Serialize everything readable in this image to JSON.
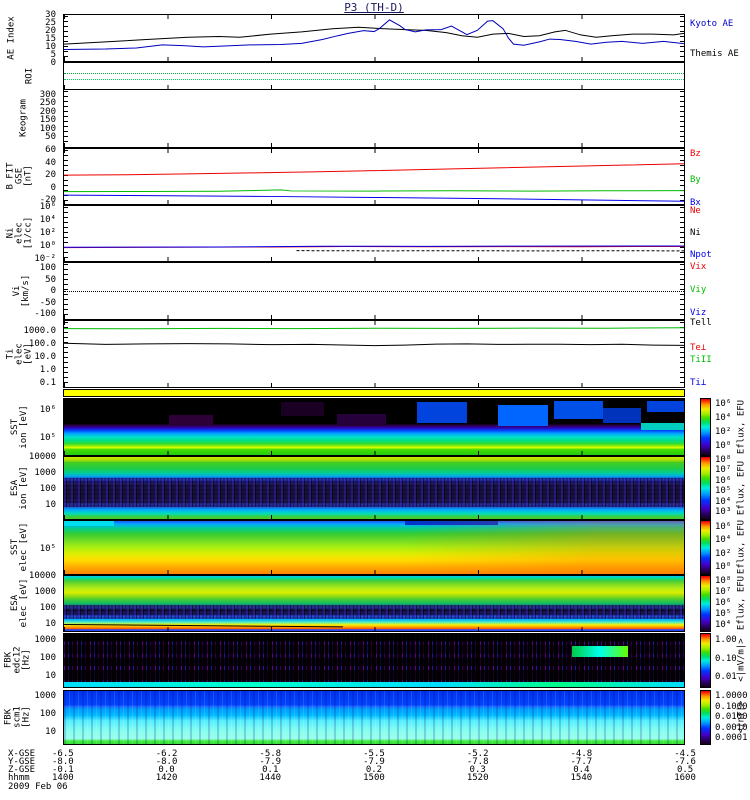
{
  "chart_data": {
    "type": "multi-panel-timeseries",
    "title": "P3 (TH-D)",
    "x": {
      "label": "hhmm",
      "ticks": [
        "1400",
        "1420",
        "1440",
        "1500",
        "1520",
        "1540",
        "1600"
      ],
      "date": "2009 Feb 06",
      "range_minutes": [
        0,
        120
      ],
      "ephemeris": [
        {
          "label": "X-GSE",
          "values": [
            "-6.5",
            "-6.2",
            "-5.8",
            "-5.5",
            "-5.2",
            "-4.8",
            "-4.5"
          ]
        },
        {
          "label": "Y-GSE",
          "values": [
            "-8.0",
            "-8.0",
            "-7.9",
            "-7.9",
            "-7.8",
            "-7.7",
            "-7.6"
          ]
        },
        {
          "label": "Z-GSE",
          "values": [
            "-0.1",
            "0.0",
            "0.1",
            "0.2",
            "0.3",
            "0.4",
            "0.5"
          ]
        }
      ]
    },
    "panels": [
      {
        "id": "ae-index",
        "left_label_lines": [
          "AE Index"
        ],
        "yticks": [
          "30",
          "25",
          "20",
          "15",
          "10",
          "5",
          "0"
        ],
        "yrange": [
          0,
          30
        ],
        "scale": "linear",
        "xrange": [
          0,
          120
        ],
        "right_labels": [
          {
            "text": "Kyoto AE",
            "color": "#0000cc"
          },
          {
            "text": "Themis AE",
            "color": "#000000"
          }
        ],
        "series": [
          {
            "name": "kyoto-ae-line",
            "color": "#000000",
            "points": [
              [
                0,
                11
              ],
              [
                8,
                12.5
              ],
              [
                16,
                14
              ],
              [
                24,
                15.5
              ],
              [
                30,
                16
              ],
              [
                34,
                15.5
              ],
              [
                40,
                17.5
              ],
              [
                46,
                19
              ],
              [
                52,
                21
              ],
              [
                57,
                22
              ],
              [
                62,
                21
              ],
              [
                66,
                20.5
              ],
              [
                70,
                20
              ],
              [
                74,
                18.5
              ],
              [
                77,
                16.5
              ],
              [
                80,
                15.5
              ],
              [
                83,
                17.5
              ],
              [
                86,
                18
              ],
              [
                89,
                16
              ],
              [
                92,
                16.5
              ],
              [
                95,
                19
              ],
              [
                97,
                20
              ],
              [
                100,
                17
              ],
              [
                103,
                15.5
              ],
              [
                106,
                16.5
              ],
              [
                110,
                17.5
              ],
              [
                114,
                17.5
              ],
              [
                118,
                17
              ],
              [
                120,
                18
              ]
            ]
          },
          {
            "name": "themis-ae-line",
            "color": "#0000bb",
            "points": [
              [
                0,
                7.5
              ],
              [
                8,
                7.8
              ],
              [
                14,
                8.5
              ],
              [
                19,
                10.5
              ],
              [
                23,
                10
              ],
              [
                27,
                9.2
              ],
              [
                31,
                9.8
              ],
              [
                36,
                10.5
              ],
              [
                42,
                10.8
              ],
              [
                46,
                11.5
              ],
              [
                50,
                14
              ],
              [
                53,
                16.5
              ],
              [
                55,
                18
              ],
              [
                58,
                19.8
              ],
              [
                60,
                19.2
              ],
              [
                61,
                21
              ],
              [
                63,
                26.8
              ],
              [
                65,
                23
              ],
              [
                66,
                20.5
              ],
              [
                68,
                19
              ],
              [
                70,
                20.3
              ],
              [
                73,
                20.5
              ],
              [
                75,
                22.8
              ],
              [
                77,
                19
              ],
              [
                78,
                17.2
              ],
              [
                80,
                20
              ],
              [
                82,
                26
              ],
              [
                83,
                26.3
              ],
              [
                85,
                21
              ],
              [
                86,
                15
              ],
              [
                87,
                11
              ],
              [
                89,
                10.3
              ],
              [
                92,
                12.5
              ],
              [
                94,
                14.3
              ],
              [
                96,
                14
              ],
              [
                99,
                12.8
              ],
              [
                102,
                11
              ],
              [
                105,
                12.2
              ],
              [
                108,
                12.8
              ],
              [
                112,
                11.5
              ],
              [
                116,
                12.8
              ],
              [
                120,
                11.3
              ]
            ]
          }
        ]
      },
      {
        "id": "roi",
        "left_label_lines": [
          "ROI"
        ],
        "yticks": []
      },
      {
        "id": "keogram",
        "left_label_lines": [
          "Keogram"
        ],
        "yticks": [
          "300",
          "250",
          "200",
          "150",
          "100",
          "50"
        ]
      },
      {
        "id": "b-fit",
        "left_label_lines": [
          "B FIT",
          "GSE",
          "[nT]"
        ],
        "yticks": [
          "60",
          "40",
          "20",
          "0",
          "-20"
        ],
        "yrange": [
          -20,
          60
        ],
        "scale": "linear",
        "xrange": [
          0,
          120
        ],
        "right_labels": [
          {
            "text": "Bz",
            "color": "#ee0000"
          },
          {
            "text": "By",
            "color": "#00bb00"
          },
          {
            "text": "Bx",
            "color": "#0000ee"
          }
        ],
        "series": [
          {
            "name": "bz-line",
            "color": "#ee0000",
            "points": [
              [
                0,
                22
              ],
              [
                12,
                22.5
              ],
              [
                24,
                23.8
              ],
              [
                36,
                25.2
              ],
              [
                48,
                26.8
              ],
              [
                60,
                28.5
              ],
              [
                72,
                30.5
              ],
              [
                84,
                32.5
              ],
              [
                96,
                34.5
              ],
              [
                108,
                36.5
              ],
              [
                120,
                38.5
              ]
            ]
          },
          {
            "name": "by-line",
            "color": "#00bb00",
            "points": [
              [
                0,
                -2
              ],
              [
                15,
                -1.8
              ],
              [
                30,
                -1.5
              ],
              [
                42,
                0.5
              ],
              [
                44,
                -1
              ],
              [
                60,
                -1.2
              ],
              [
                75,
                -0.8
              ],
              [
                90,
                -1.2
              ],
              [
                105,
                -0.8
              ],
              [
                120,
                -0.5
              ]
            ]
          },
          {
            "name": "bx-line",
            "color": "#0000ee",
            "points": [
              [
                0,
                -7
              ],
              [
                20,
                -8
              ],
              [
                40,
                -9
              ],
              [
                60,
                -10.5
              ],
              [
                80,
                -12
              ],
              [
                100,
                -14
              ],
              [
                120,
                -16
              ]
            ]
          }
        ]
      },
      {
        "id": "density",
        "left_label_lines": [
          "Ni",
          "elec",
          "[1/cc]"
        ],
        "yticks": [
          "10⁶",
          "10⁴",
          "10²",
          "10⁰",
          "10⁻²"
        ],
        "yrange": [
          0.01,
          1000000
        ],
        "scale": "log",
        "xrange": [
          0,
          120
        ],
        "right_labels": [
          {
            "text": "Ne",
            "color": "#ee0000"
          },
          {
            "text": "Ni",
            "color": "#000000"
          },
          {
            "text": "Npot",
            "color": "#0000ee"
          }
        ],
        "series": [
          {
            "name": "ne-line",
            "color": "#ee0000",
            "points": [
              [
                0,
                0.9
              ],
              [
                20,
                1.0
              ],
              [
                40,
                1.1
              ],
              [
                55,
                1.3
              ],
              [
                70,
                1.2
              ],
              [
                85,
                1.25
              ],
              [
                100,
                1.2
              ],
              [
                115,
                1.3
              ],
              [
                120,
                1.3
              ]
            ]
          },
          {
            "name": "npot-line",
            "color": "#0000ee",
            "points": [
              [
                0,
                1.0
              ],
              [
                30,
                1.1
              ],
              [
                50,
                1.4
              ],
              [
                70,
                1.35
              ],
              [
                90,
                1.45
              ],
              [
                110,
                1.5
              ],
              [
                120,
                1.5
              ]
            ]
          },
          {
            "name": "ni-line",
            "color": "#000000",
            "dash": "3,2",
            "points": [
              [
                45,
                0.32
              ],
              [
                60,
                0.3
              ],
              [
                75,
                0.31
              ],
              [
                90,
                0.3
              ],
              [
                105,
                0.31
              ],
              [
                120,
                0.3
              ]
            ]
          }
        ]
      },
      {
        "id": "velocity",
        "left_label_lines": [
          "Vi",
          "[km/s]"
        ],
        "yticks": [
          "100",
          "50",
          "0",
          "-50",
          "-100"
        ],
        "yrange": [
          -150,
          150
        ],
        "scale": "linear",
        "xrange": [
          0,
          120
        ],
        "right_labels": [
          {
            "text": "Vix",
            "color": "#ee0000"
          },
          {
            "text": "Viy",
            "color": "#00bb00"
          },
          {
            "text": "Viz",
            "color": "#0000ee"
          }
        ],
        "series": []
      },
      {
        "id": "temperature",
        "left_label_lines": [
          "Ti",
          "elec",
          "[eV]"
        ],
        "yticks": [
          "1000.0",
          "100.0",
          "10.0",
          "1.0",
          "0.1"
        ],
        "yrange": [
          0.05,
          7000
        ],
        "scale": "log",
        "xrange": [
          0,
          120
        ],
        "right_labels": [
          {
            "text": "Tell",
            "color": "#000000"
          },
          {
            "text": "Te⊥",
            "color": "#ee0000"
          },
          {
            "text": "TiII",
            "color": "#00bb00"
          },
          {
            "text": "Ti⊥",
            "color": "#0000ee"
          }
        ],
        "series": [
          {
            "name": "ti-par-line",
            "color": "#00bb00",
            "points": [
              [
                0,
                1800
              ],
              [
                15,
                1750
              ],
              [
                30,
                1850
              ],
              [
                45,
                1800
              ],
              [
                60,
                1900
              ],
              [
                75,
                1850
              ],
              [
                90,
                1950
              ],
              [
                105,
                1900
              ],
              [
                120,
                2100
              ]
            ]
          },
          {
            "name": "te-par-line",
            "color": "#000000",
            "points": [
              [
                0,
                130
              ],
              [
                8,
                105
              ],
              [
                16,
                115
              ],
              [
                24,
                120
              ],
              [
                32,
                115
              ],
              [
                40,
                100
              ],
              [
                48,
                105
              ],
              [
                54,
                95
              ],
              [
                60,
                85
              ],
              [
                66,
                92
              ],
              [
                72,
                110
              ],
              [
                78,
                115
              ],
              [
                84,
                105
              ],
              [
                90,
                108
              ],
              [
                96,
                107
              ],
              [
                102,
                100
              ],
              [
                108,
                107
              ],
              [
                114,
                93
              ],
              [
                120,
                88
              ]
            ]
          }
        ]
      },
      {
        "id": "sst-ion",
        "left_label_lines": [
          "SST",
          "ion [eV]"
        ],
        "yticks": [
          "10⁶",
          "10⁵"
        ],
        "colorbar": {
          "ticks": [
            "10⁶",
            "10⁴",
            "10²",
            "10⁰"
          ],
          "label": "Eflux, EFU"
        }
      },
      {
        "id": "esa-ion",
        "left_label_lines": [
          "ESA",
          "ion [eV]"
        ],
        "yticks": [
          "10000",
          "1000",
          "100",
          "10"
        ],
        "colorbar": {
          "ticks": [
            "10⁸",
            "10⁷",
            "10⁶",
            "10⁵",
            "10⁴",
            "10³"
          ],
          "label": "Eflux, EFU"
        }
      },
      {
        "id": "sst-elec",
        "left_label_lines": [
          "SST",
          "elec [eV]"
        ],
        "yticks": [
          "10⁵"
        ],
        "colorbar": {
          "ticks": [
            "10⁶",
            "10⁴",
            "10²",
            "10⁰"
          ],
          "label": "Eflux, EFU"
        }
      },
      {
        "id": "esa-elec",
        "left_label_lines": [
          "ESA",
          "elec [eV]"
        ],
        "yticks": [
          "10000",
          "1000",
          "100",
          "10"
        ],
        "colorbar": {
          "ticks": [
            "10⁸",
            "10⁷",
            "10⁶",
            "10⁵",
            "10⁴"
          ],
          "label": "Eflux, EFU"
        }
      },
      {
        "id": "fbk-edc12",
        "left_label_lines": [
          "FBK",
          "edc12",
          "[Hz]"
        ],
        "yticks": [
          "1000",
          "100",
          "10"
        ],
        "colorbar": {
          "ticks": [
            "1.00",
            "0.10",
            "0.01"
          ],
          "label": "<|mV/m|>"
        }
      },
      {
        "id": "fbk-scm1",
        "left_label_lines": [
          "FBK",
          "scm1",
          "[Hz]"
        ],
        "yticks": [
          "1000",
          "100",
          "10"
        ],
        "colorbar": {
          "ticks": [
            "1.0000",
            "0.1000",
            "0.0100",
            "0.0010",
            "0.0001"
          ],
          "label": "<|nT|>"
        }
      }
    ]
  }
}
